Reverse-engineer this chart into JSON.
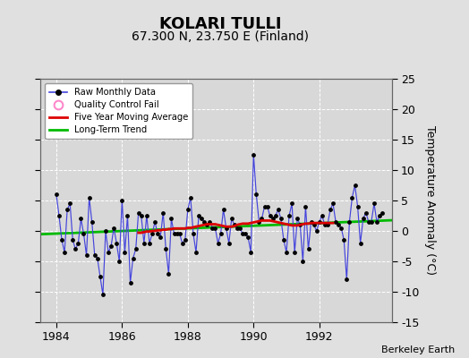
{
  "title": "KOLARI TULLI",
  "subtitle": "67.300 N, 23.750 E (Finland)",
  "ylabel": "Temperature Anomaly (°C)",
  "credit": "Berkeley Earth",
  "xlim": [
    1983.5,
    1994.2
  ],
  "ylim": [
    -15,
    25
  ],
  "yticks": [
    -15,
    -10,
    -5,
    0,
    5,
    10,
    15,
    20,
    25
  ],
  "xticks": [
    1984,
    1986,
    1988,
    1990,
    1992
  ],
  "bg_color": "#e0e0e0",
  "plot_bg_color": "#d8d8d8",
  "title_fontsize": 13,
  "subtitle_fontsize": 10,
  "raw_color": "#4444dd",
  "raw_marker_color": "#000000",
  "moving_avg_color": "#dd0000",
  "trend_color": "#00bb00",
  "raw_data_x": [
    1984.0,
    1984.083,
    1984.167,
    1984.25,
    1984.333,
    1984.417,
    1984.5,
    1984.583,
    1984.667,
    1984.75,
    1984.833,
    1984.917,
    1985.0,
    1985.083,
    1985.167,
    1985.25,
    1985.333,
    1985.417,
    1985.5,
    1985.583,
    1985.667,
    1985.75,
    1985.833,
    1985.917,
    1986.0,
    1986.083,
    1986.167,
    1986.25,
    1986.333,
    1986.417,
    1986.5,
    1986.583,
    1986.667,
    1986.75,
    1986.833,
    1986.917,
    1987.0,
    1987.083,
    1987.167,
    1987.25,
    1987.333,
    1987.417,
    1987.5,
    1987.583,
    1987.667,
    1987.75,
    1987.833,
    1987.917,
    1988.0,
    1988.083,
    1988.167,
    1988.25,
    1988.333,
    1988.417,
    1988.5,
    1988.583,
    1988.667,
    1988.75,
    1988.833,
    1988.917,
    1989.0,
    1989.083,
    1989.167,
    1989.25,
    1989.333,
    1989.417,
    1989.5,
    1989.583,
    1989.667,
    1989.75,
    1989.833,
    1989.917,
    1990.0,
    1990.083,
    1990.167,
    1990.25,
    1990.333,
    1990.417,
    1990.5,
    1990.583,
    1990.667,
    1990.75,
    1990.833,
    1990.917,
    1991.0,
    1991.083,
    1991.167,
    1991.25,
    1991.333,
    1991.417,
    1991.5,
    1991.583,
    1991.667,
    1991.75,
    1991.833,
    1991.917,
    1992.0,
    1992.083,
    1992.167,
    1992.25,
    1992.333,
    1992.417,
    1992.5,
    1992.583,
    1992.667,
    1992.75,
    1992.833,
    1992.917,
    1993.0,
    1993.083,
    1993.167,
    1993.25,
    1993.333,
    1993.417,
    1993.5,
    1993.583,
    1993.667,
    1993.75,
    1993.833,
    1993.917
  ],
  "raw_data_y": [
    6.0,
    2.5,
    -1.5,
    -3.5,
    3.5,
    4.5,
    -1.5,
    -3.0,
    -2.0,
    2.0,
    -0.5,
    -4.0,
    5.5,
    1.5,
    -4.0,
    -4.5,
    -7.5,
    -10.5,
    0.0,
    -3.5,
    -2.5,
    0.5,
    -2.0,
    -5.0,
    5.0,
    -3.5,
    2.5,
    -8.5,
    -4.5,
    -3.0,
    3.0,
    2.5,
    -2.0,
    2.5,
    -2.0,
    -0.5,
    1.5,
    -0.5,
    -1.0,
    3.0,
    -3.0,
    -7.0,
    2.0,
    -0.5,
    -0.5,
    -0.5,
    -2.0,
    -1.5,
    3.5,
    5.5,
    -0.5,
    -3.5,
    2.5,
    2.0,
    1.5,
    1.0,
    1.5,
    0.5,
    0.5,
    -2.0,
    -0.5,
    3.5,
    0.5,
    -2.0,
    2.0,
    1.0,
    0.5,
    0.5,
    -0.5,
    -0.5,
    -1.0,
    -3.5,
    12.5,
    6.0,
    1.5,
    2.0,
    4.0,
    4.0,
    2.5,
    2.0,
    2.5,
    3.5,
    2.0,
    -1.5,
    -3.5,
    2.5,
    4.5,
    -3.5,
    2.0,
    1.0,
    -5.0,
    4.0,
    -3.0,
    1.5,
    1.0,
    0.0,
    1.5,
    2.5,
    1.0,
    1.0,
    3.5,
    4.5,
    1.5,
    1.0,
    0.5,
    -1.5,
    -8.0,
    1.5,
    5.5,
    7.5,
    4.0,
    -2.0,
    2.0,
    3.0,
    1.5,
    1.5,
    4.5,
    1.5,
    2.5,
    3.0
  ],
  "moving_avg_x": [
    1986.5,
    1986.583,
    1986.667,
    1986.75,
    1986.833,
    1986.917,
    1987.0,
    1987.083,
    1987.167,
    1987.25,
    1987.333,
    1987.417,
    1987.5,
    1987.583,
    1987.667,
    1987.75,
    1987.833,
    1987.917,
    1988.0,
    1988.083,
    1988.167,
    1988.25,
    1988.333,
    1988.417,
    1988.5,
    1988.583,
    1988.667,
    1988.75,
    1988.833,
    1988.917,
    1989.0,
    1989.083,
    1989.167,
    1989.25,
    1989.333,
    1989.417,
    1989.5,
    1989.583,
    1989.667,
    1989.75,
    1989.833,
    1989.917,
    1990.0,
    1990.083,
    1990.167,
    1990.25,
    1990.333,
    1990.417,
    1990.5,
    1990.583,
    1990.667,
    1990.75,
    1990.833,
    1990.917,
    1991.0,
    1991.083,
    1991.167,
    1991.25,
    1991.333,
    1991.417,
    1991.5,
    1991.583,
    1991.667,
    1991.75,
    1991.833,
    1991.917,
    1992.0,
    1992.083,
    1992.167,
    1992.25,
    1992.333,
    1992.417
  ],
  "moving_avg_y": [
    -0.3,
    -0.3,
    -0.2,
    -0.1,
    -0.1,
    0.0,
    0.0,
    0.1,
    0.1,
    0.2,
    0.2,
    0.3,
    0.3,
    0.4,
    0.4,
    0.4,
    0.4,
    0.4,
    0.5,
    0.5,
    0.6,
    0.7,
    0.8,
    0.9,
    1.0,
    1.1,
    1.1,
    1.1,
    1.1,
    1.0,
    0.9,
    0.8,
    0.7,
    0.7,
    0.7,
    0.8,
    1.0,
    1.1,
    1.2,
    1.2,
    1.2,
    1.3,
    1.4,
    1.5,
    1.6,
    1.7,
    1.7,
    1.7,
    1.7,
    1.6,
    1.5,
    1.4,
    1.3,
    1.2,
    1.1,
    1.0,
    0.9,
    0.9,
    0.9,
    1.0,
    1.1,
    1.2,
    1.2,
    1.3,
    1.3,
    1.3,
    1.3,
    1.3,
    1.3,
    1.3,
    1.3,
    1.3
  ],
  "trend_x": [
    1983.5,
    1994.2
  ],
  "trend_y": [
    -0.55,
    1.75
  ]
}
